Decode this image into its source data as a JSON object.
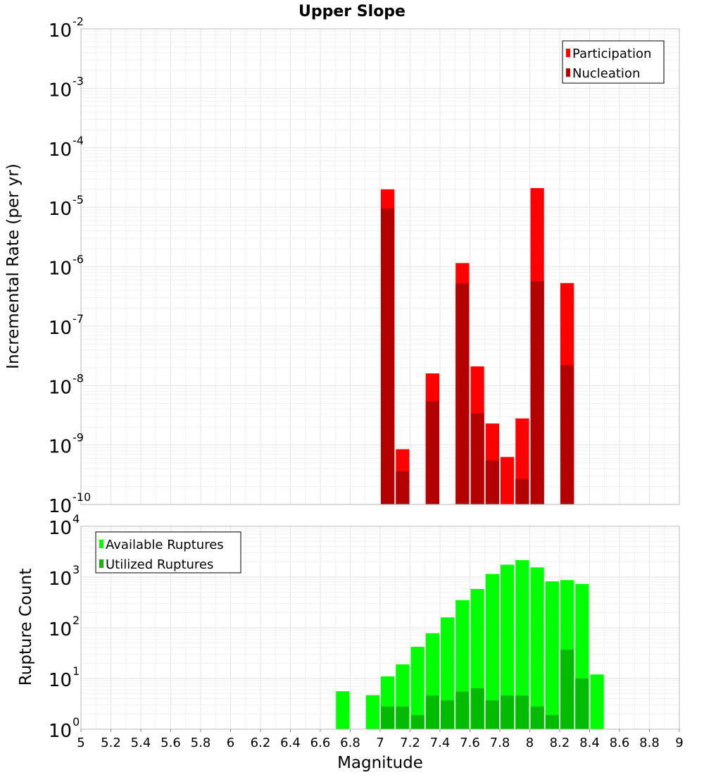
{
  "chart_data": [
    {
      "type": "bar",
      "title": "Upper Slope",
      "xlabel": "",
      "ylabel": "Incremental Rate (per yr)",
      "xlim": [
        5,
        9
      ],
      "ylim": [
        1e-10,
        0.01
      ],
      "yscale": "log",
      "bar_width": 0.1,
      "grid": true,
      "legend_position": "top-right",
      "bar_mode": "overlay",
      "series": [
        {
          "name": "Participation",
          "color": "#ff0000",
          "x": [
            7.05,
            7.15,
            7.35,
            7.55,
            7.65,
            7.75,
            7.85,
            7.95,
            8.05,
            8.25
          ],
          "values": [
            2e-05,
            8.5e-10,
            1.6e-08,
            1.15e-06,
            2.1e-08,
            2.3e-09,
            6.3e-10,
            2.8e-09,
            2.1e-05,
            5.3e-07
          ]
        },
        {
          "name": "Nucleation",
          "color": "#b30000",
          "x": [
            7.05,
            7.15,
            7.35,
            7.55,
            7.65,
            7.75,
            7.85,
            7.95,
            8.05,
            8.25
          ],
          "values": [
            9.5e-06,
            3.6e-10,
            5.5e-09,
            5.2e-07,
            3.4e-09,
            5.5e-10,
            null,
            2.7e-10,
            5.7e-07,
            2.2e-08
          ]
        }
      ]
    },
    {
      "type": "bar",
      "title": "",
      "xlabel": "Magnitude",
      "ylabel": "Rupture Count",
      "xlim": [
        5,
        9
      ],
      "ylim": [
        1,
        10000
      ],
      "yscale": "log",
      "bar_width": 0.1,
      "grid": true,
      "legend_position": "top-left",
      "bar_mode": "overlay",
      "series": [
        {
          "name": "Available Ruptures",
          "color": "#00ff00",
          "x": [
            6.75,
            6.95,
            7.05,
            7.15,
            7.25,
            7.35,
            7.45,
            7.55,
            7.65,
            7.75,
            7.85,
            7.95,
            8.05,
            8.15,
            8.25,
            8.35,
            8.45
          ],
          "values": [
            5.6,
            4.7,
            11,
            19,
            42,
            78,
            160,
            350,
            580,
            1150,
            1750,
            2150,
            1550,
            820,
            870,
            730,
            12
          ]
        },
        {
          "name": "Utilized Ruptures",
          "color": "#00bb00",
          "x": [
            7.05,
            7.15,
            7.25,
            7.35,
            7.45,
            7.55,
            7.65,
            7.75,
            7.85,
            7.95,
            8.05,
            8.15,
            8.25,
            8.35
          ],
          "values": [
            2.8,
            2.8,
            1.9,
            4.6,
            3.7,
            5.5,
            6.4,
            3.7,
            4.6,
            4.6,
            2.8,
            1.9,
            37,
            10
          ]
        }
      ]
    }
  ],
  "x_ticks": [
    "5",
    "5.2",
    "5.4",
    "5.6",
    "5.8",
    "6",
    "6.2",
    "6.4",
    "6.6",
    "6.8",
    "7",
    "7.2",
    "7.4",
    "7.6",
    "7.8",
    "8",
    "8.2",
    "8.4",
    "8.6",
    "8.8",
    "9"
  ],
  "top_y_ticks": [
    {
      "base": "10",
      "exp": "-2"
    },
    {
      "base": "10",
      "exp": "-3"
    },
    {
      "base": "10",
      "exp": "-4"
    },
    {
      "base": "10",
      "exp": "-5"
    },
    {
      "base": "10",
      "exp": "-6"
    },
    {
      "base": "10",
      "exp": "-7"
    },
    {
      "base": "10",
      "exp": "-8"
    },
    {
      "base": "10",
      "exp": "-9"
    },
    {
      "base": "10",
      "exp": "-10"
    }
  ],
  "bottom_y_ticks": [
    {
      "base": "10",
      "exp": "4"
    },
    {
      "base": "10",
      "exp": "3"
    },
    {
      "base": "10",
      "exp": "2"
    },
    {
      "base": "10",
      "exp": "1"
    },
    {
      "base": "10",
      "exp": "0"
    }
  ]
}
